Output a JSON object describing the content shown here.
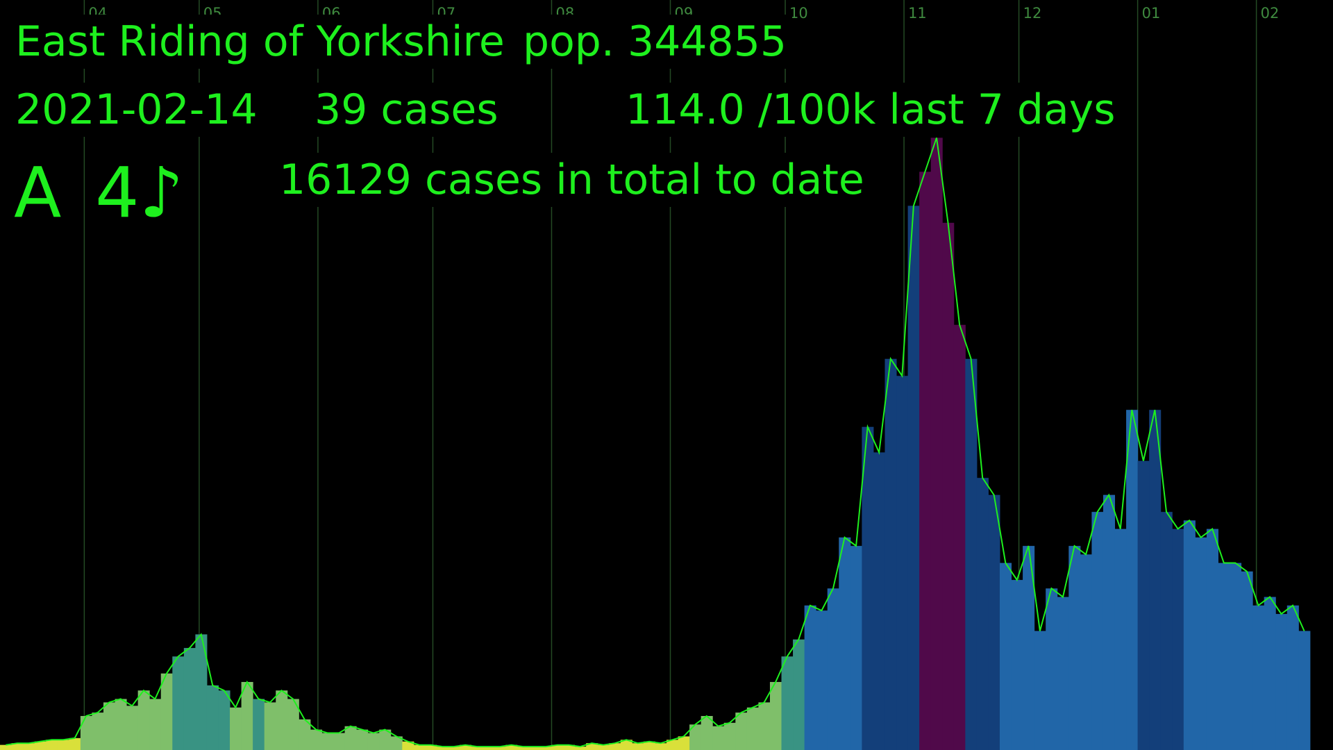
{
  "chart_data": {
    "type": "bar",
    "title": "East Riding of Yorkshire",
    "population": "pop. 344855",
    "date": "2021-02-14",
    "cases_today": "39 cases",
    "rate": "114.0 /100k last 7 days",
    "tier": "A",
    "sound": "4♪",
    "total": "16129 cases in total to date",
    "text_color": "#1ef01e",
    "line_color": "#1ef01e",
    "grid_color": "#244a24",
    "tick_label_color": "#3f8a3f",
    "bar_width": 3,
    "xlim": [
      0,
      348
    ],
    "ylim": [
      0,
      441
    ],
    "xticks": [
      {
        "value": 22,
        "label": "04"
      },
      {
        "value": 52,
        "label": "05"
      },
      {
        "value": 83,
        "label": "06"
      },
      {
        "value": 113,
        "label": "07"
      },
      {
        "value": 144,
        "label": "08"
      },
      {
        "value": 175,
        "label": "09"
      },
      {
        "value": 205,
        "label": "10"
      },
      {
        "value": 236,
        "label": "11"
      },
      {
        "value": 266,
        "label": "12"
      },
      {
        "value": 297,
        "label": "01"
      },
      {
        "value": 328,
        "label": "02"
      }
    ],
    "grid": true,
    "x": [
      0,
      3,
      6,
      9,
      12,
      15,
      18,
      21,
      24,
      27,
      30,
      33,
      36,
      39,
      42,
      45,
      48,
      51,
      54,
      57,
      60,
      63,
      66,
      69,
      72,
      75,
      78,
      81,
      84,
      87,
      90,
      93,
      96,
      99,
      102,
      105,
      108,
      111,
      114,
      117,
      120,
      123,
      126,
      129,
      132,
      135,
      138,
      141,
      144,
      147,
      150,
      153,
      156,
      159,
      162,
      165,
      168,
      171,
      174,
      177,
      180,
      183,
      186,
      189,
      192,
      195,
      198,
      201,
      204,
      207,
      210,
      213,
      216,
      219,
      222,
      225,
      228,
      231,
      234,
      237,
      240,
      243,
      246,
      249,
      252,
      255,
      258,
      261,
      264,
      267,
      270,
      273,
      276,
      279,
      282,
      285,
      288,
      291,
      294,
      297,
      300,
      303,
      306,
      309,
      312,
      315,
      318,
      321,
      324,
      327,
      330,
      333,
      336,
      339
    ],
    "values": [
      3,
      4,
      4,
      5,
      6,
      6,
      7,
      20,
      22,
      28,
      30,
      26,
      35,
      30,
      45,
      55,
      60,
      68,
      38,
      35,
      25,
      40,
      30,
      28,
      35,
      30,
      18,
      12,
      10,
      10,
      14,
      12,
      10,
      12,
      8,
      5,
      3,
      3,
      2,
      2,
      3,
      2,
      2,
      2,
      3,
      2,
      2,
      2,
      3,
      3,
      2,
      4,
      3,
      4,
      6,
      4,
      5,
      4,
      6,
      8,
      15,
      20,
      14,
      16,
      22,
      25,
      28,
      40,
      55,
      65,
      85,
      82,
      95,
      125,
      120,
      190,
      175,
      230,
      220,
      320,
      340,
      360,
      310,
      250,
      230,
      160,
      150,
      110,
      100,
      120,
      70,
      95,
      90,
      120,
      115,
      140,
      150,
      130,
      200,
      170,
      200,
      140,
      130,
      135,
      125,
      130,
      110,
      110,
      105,
      85,
      90,
      80,
      85,
      70
    ],
    "colors": [
      "#d9e03a",
      "#d9e03a",
      "#d9e03a",
      "#d9e03a",
      "#d9e03a",
      "#d9e03a",
      "#d9e03a",
      "#7fbf6a",
      "#7fbf6a",
      "#7fbf6a",
      "#7fbf6a",
      "#7fbf6a",
      "#7fbf6a",
      "#7fbf6a",
      "#7fbf6a",
      "#399383",
      "#399383",
      "#399383",
      "#399383",
      "#399383",
      "#7fbf6a",
      "#7fbf6a",
      "#399383",
      "#7fbf6a",
      "#7fbf6a",
      "#7fbf6a",
      "#7fbf6a",
      "#7fbf6a",
      "#7fbf6a",
      "#7fbf6a",
      "#7fbf6a",
      "#7fbf6a",
      "#7fbf6a",
      "#7fbf6a",
      "#7fbf6a",
      "#d9e03a",
      "#d9e03a",
      "#d9e03a",
      "#d9e03a",
      "#d9e03a",
      "#d9e03a",
      "#d9e03a",
      "#d9e03a",
      "#d9e03a",
      "#d9e03a",
      "#d9e03a",
      "#d9e03a",
      "#d9e03a",
      "#d9e03a",
      "#d9e03a",
      "#d9e03a",
      "#d9e03a",
      "#d9e03a",
      "#d9e03a",
      "#d9e03a",
      "#d9e03a",
      "#d9e03a",
      "#d9e03a",
      "#d9e03a",
      "#d9e03a",
      "#7fbf6a",
      "#7fbf6a",
      "#7fbf6a",
      "#7fbf6a",
      "#7fbf6a",
      "#7fbf6a",
      "#7fbf6a",
      "#7fbf6a",
      "#399383",
      "#399383",
      "#2166a8",
      "#2166a8",
      "#2166a8",
      "#2166a8",
      "#2166a8",
      "#133f7a",
      "#133f7a",
      "#133f7a",
      "#133f7a",
      "#133f7a",
      "#50094a",
      "#50094a",
      "#50094a",
      "#50094a",
      "#133f7a",
      "#133f7a",
      "#133f7a",
      "#2166a8",
      "#2166a8",
      "#2166a8",
      "#2166a8",
      "#2166a8",
      "#2166a8",
      "#2166a8",
      "#2166a8",
      "#2166a8",
      "#2166a8",
      "#2166a8",
      "#2166a8",
      "#133f7a",
      "#133f7a",
      "#133f7a",
      "#133f7a",
      "#2166a8",
      "#2166a8",
      "#2166a8",
      "#2166a8",
      "#2166a8",
      "#2166a8",
      "#2166a8",
      "#2166a8",
      "#2166a8",
      "#2166a8",
      "#2166a8"
    ]
  }
}
